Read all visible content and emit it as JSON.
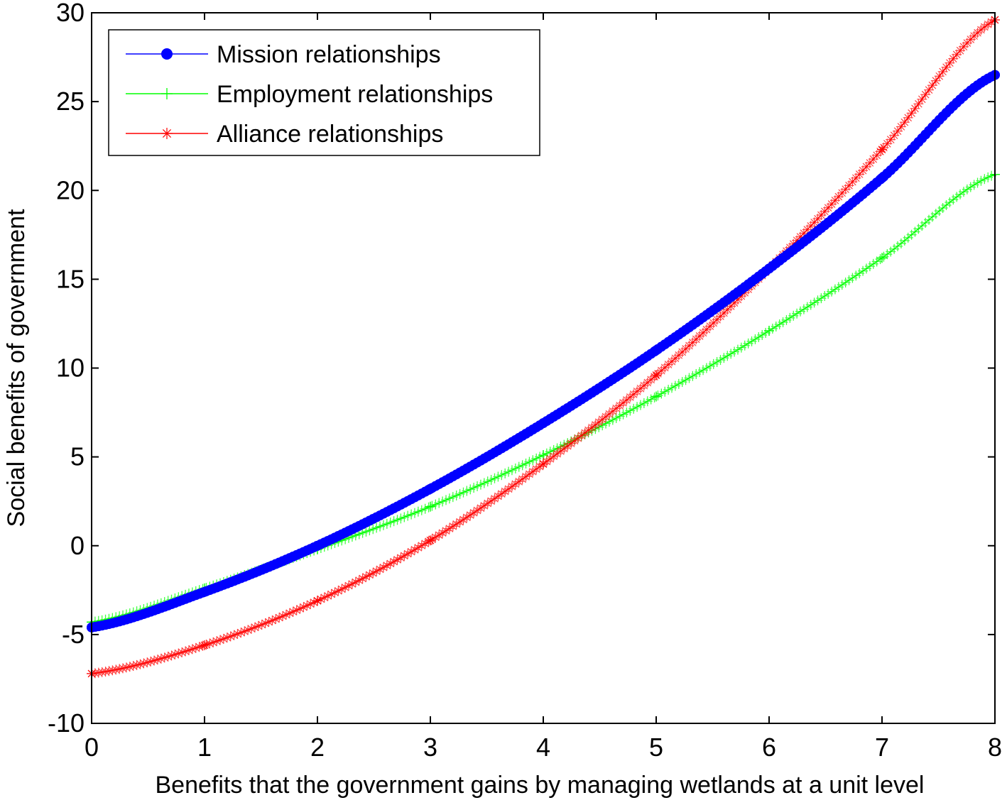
{
  "chart_data": {
    "type": "line",
    "title": "",
    "xlabel": "Benefits that the government gains by managing wetlands at a unit level",
    "ylabel": "Social benefits of government",
    "xlim": [
      0,
      8
    ],
    "ylim": [
      -10,
      30
    ],
    "xticks": [
      "0",
      "1",
      "2",
      "3",
      "4",
      "5",
      "6",
      "7",
      "8"
    ],
    "yticks": [
      "-10",
      "-5",
      "0",
      "5",
      "10",
      "15",
      "20",
      "25",
      "30"
    ],
    "grid": false,
    "legend_position": "top-left",
    "series": [
      {
        "name": "Mission relationships",
        "color": "#0000ff",
        "marker": "circle",
        "x": [
          0,
          1,
          2,
          3,
          4,
          5,
          6,
          7,
          8
        ],
        "y": [
          -4.6,
          -2.6,
          0.0,
          3.2,
          6.9,
          11.0,
          15.6,
          20.7,
          26.5
        ]
      },
      {
        "name": "Employment relationships",
        "color": "#00ff00",
        "marker": "plus",
        "x": [
          0,
          1,
          2,
          3,
          4,
          5,
          6,
          7,
          8
        ],
        "y": [
          -4.3,
          -2.4,
          -0.2,
          2.2,
          5.1,
          8.4,
          12.1,
          16.2,
          20.9
        ]
      },
      {
        "name": "Alliance relationships",
        "color": "#ff0000",
        "marker": "star",
        "x": [
          0,
          1,
          2,
          3,
          4,
          5,
          6,
          7,
          8
        ],
        "y": [
          -7.2,
          -5.6,
          -3.1,
          0.3,
          4.6,
          9.6,
          15.6,
          22.3,
          29.6
        ]
      }
    ]
  }
}
